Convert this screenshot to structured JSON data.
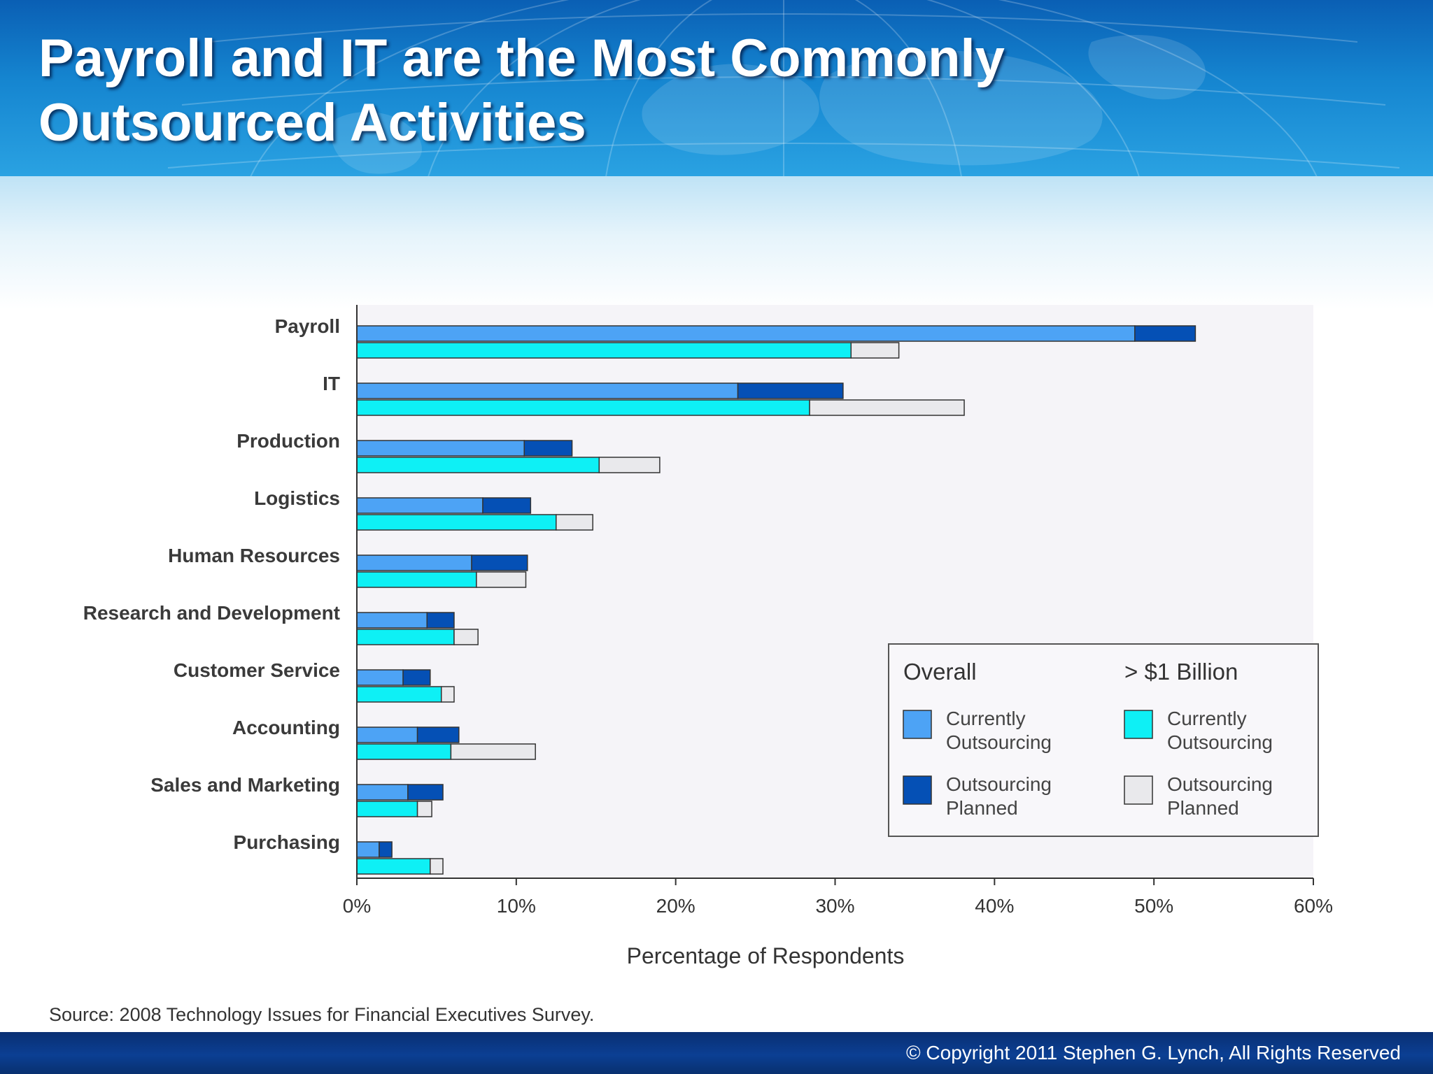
{
  "slide": {
    "title_line1": "Payroll and IT are the Most Commonly",
    "title_line2": "Outsourced Activities",
    "source": "Source: 2008 Technology Issues for Financial Executives Survey.",
    "copyright": "© Copyright 2011 Stephen G. Lynch, All Rights Reserved"
  },
  "colors": {
    "overall_current": "#4da3f5",
    "overall_planned": "#0550b5",
    "billion_current": "#0ef0f5",
    "billion_planned": "#e9e9ec",
    "plot_background": "#f5f4f8",
    "bar_outline": "#333333",
    "header_blue": "#1585d0",
    "footer_blue": "#0b3f93"
  },
  "chart_data": {
    "type": "bar",
    "orientation": "horizontal",
    "stacked": true,
    "categories": [
      "Payroll",
      "IT",
      "Production",
      "Logistics",
      "Human Resources",
      "Research and Development",
      "Customer Service",
      "Accounting",
      "Sales and Marketing",
      "Purchasing"
    ],
    "groups": [
      {
        "name": "Overall",
        "series": [
          {
            "name": "Currently Outsourcing",
            "color": "#4da3f5",
            "values": [
              48.8,
              23.9,
              10.5,
              7.9,
              7.2,
              4.4,
              2.9,
              3.8,
              3.2,
              1.4
            ]
          },
          {
            "name": "Outsourcing Planned",
            "color": "#0550b5",
            "values": [
              3.8,
              6.6,
              3.0,
              3.0,
              3.5,
              1.7,
              1.7,
              2.6,
              2.2,
              0.8
            ]
          }
        ]
      },
      {
        "name": "> $1 Billion",
        "series": [
          {
            "name": "Currently Outsourcing",
            "color": "#0ef0f5",
            "values": [
              31.0,
              28.4,
              15.2,
              12.5,
              7.5,
              6.1,
              5.3,
              5.9,
              3.8,
              4.6
            ]
          },
          {
            "name": "Outsourcing Planned",
            "color": "#e9e9ec",
            "values": [
              3.0,
              9.7,
              3.8,
              2.3,
              3.1,
              1.5,
              0.8,
              5.3,
              0.9,
              0.8
            ]
          }
        ]
      }
    ],
    "xlabel": "Percentage of Respondents",
    "xlim": [
      0,
      60
    ],
    "xticks": [
      "0%",
      "10%",
      "20%",
      "30%",
      "40%",
      "50%",
      "60%"
    ],
    "grid": false,
    "legend": {
      "placement": "bottom-right",
      "group_titles": [
        "Overall",
        "> $1 Billion"
      ],
      "entries": [
        {
          "group": "Overall",
          "line1": "Currently",
          "line2": "Outsourcing",
          "color": "#4da3f5"
        },
        {
          "group": "Overall",
          "line1": "Outsourcing",
          "line2": "Planned",
          "color": "#0550b5"
        },
        {
          "group": "> $1 Billion",
          "line1": "Currently",
          "line2": "Outsourcing",
          "color": "#0ef0f5"
        },
        {
          "group": "> $1 Billion",
          "line1": "Outsourcing",
          "line2": "Planned",
          "color": "#e9e9ec"
        }
      ]
    }
  }
}
